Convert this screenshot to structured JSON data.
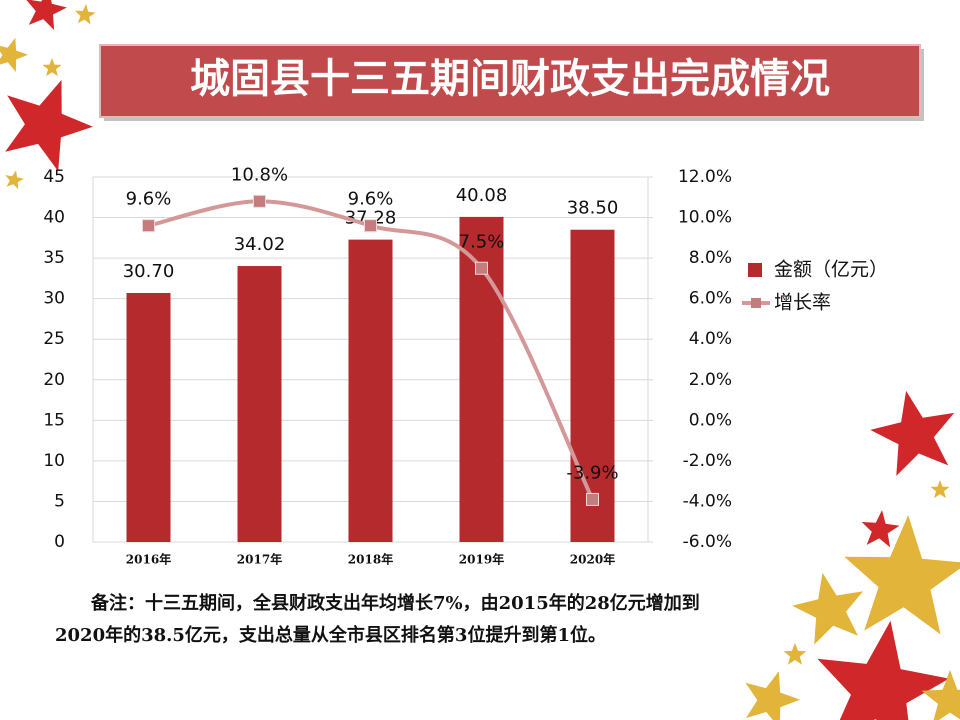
{
  "chart_data": {
    "type": "bar-line",
    "title": "城固县十三五期间财政支出完成情况",
    "categories": [
      "2016年",
      "2017年",
      "2018年",
      "2019年",
      "2020年"
    ],
    "series": [
      {
        "name": "金额（亿元）",
        "type": "bar",
        "color": "#b52a2c",
        "values": [
          30.7,
          34.02,
          37.28,
          40.08,
          38.5
        ],
        "value_labels": [
          "30.70",
          "34.02",
          "37.28",
          "40.08",
          "38.50"
        ]
      },
      {
        "name": "增长率",
        "type": "line",
        "axis": "y2",
        "color": "#d59898",
        "marker_color": "#c47c7c",
        "values": [
          9.6,
          10.8,
          9.6,
          7.5,
          -3.9
        ],
        "value_labels": [
          "9.6%",
          "10.8%",
          "9.6%",
          "7.5%",
          "-3.9%"
        ]
      }
    ],
    "ylim": [
      0,
      45
    ],
    "yticks": [
      0,
      5,
      10,
      15,
      20,
      25,
      30,
      35,
      40,
      45
    ],
    "y2lim": [
      -6,
      12
    ],
    "y2ticks": [
      {
        "value": -6,
        "label": "-6.0%"
      },
      {
        "value": -4,
        "label": "-4.0%"
      },
      {
        "value": -2,
        "label": "-2.0%"
      },
      {
        "value": 0,
        "label": "0.0%"
      },
      {
        "value": 2,
        "label": "2.0%"
      },
      {
        "value": 4,
        "label": "4.0%"
      },
      {
        "value": 6,
        "label": "6.0%"
      },
      {
        "value": 8,
        "label": "8.0%"
      },
      {
        "value": 10,
        "label": "10.0%"
      },
      {
        "value": 12,
        "label": "12.0%"
      }
    ],
    "legend": "right",
    "note": "备注：十三五期间，全县财政支出年均增长7%，由2015年的28亿元增加到2020年的38.5亿元，支出总量从全市县区排名第3位提升到第1位。"
  }
}
